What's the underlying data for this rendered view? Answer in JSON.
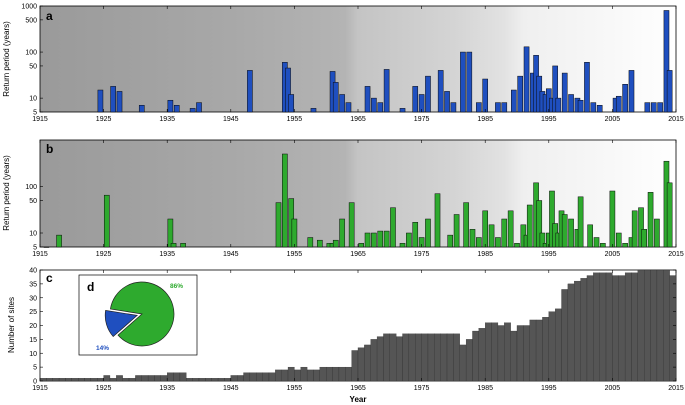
{
  "chart_data": [
    {
      "panel": "a",
      "type": "bar",
      "ylabel": "Return period (years)",
      "yscale": "log",
      "ylim": [
        5,
        1000
      ],
      "xlim": [
        1915,
        2015
      ],
      "yticks": [
        "5",
        "10",
        "50",
        "100",
        "500",
        "1000"
      ],
      "xticks": [
        "1915",
        "1925",
        "1935",
        "1945",
        "1955",
        "1965",
        "1975",
        "1985",
        "1995",
        "2005",
        "2015"
      ],
      "background": "grey-gradient",
      "bar_color": "#1f4fbf",
      "x": [
        1924.5,
        1926.5,
        1927.5,
        1931,
        1935.5,
        1936.5,
        1939,
        1940,
        1948,
        1953.5,
        1954,
        1954.5,
        1958,
        1961,
        1961.5,
        1962.5,
        1963.5,
        1966.5,
        1967.5,
        1968.5,
        1969.5,
        1972,
        1974,
        1975,
        1976,
        1978,
        1979,
        1980,
        1981.5,
        1982.5,
        1984,
        1985,
        1987,
        1988,
        1989.5,
        1990.5,
        1991.5,
        1992.5,
        1993,
        1993.5,
        1994,
        1994.5,
        1995,
        1995.5,
        1996,
        1996.5,
        1997.5,
        1998.5,
        1999.5,
        2000,
        2001,
        2002,
        2003,
        2005.5,
        2006,
        2007,
        2008,
        2010.5,
        2011.5,
        2012.5,
        2013.5,
        2014
      ],
      "values": [
        15,
        18,
        14,
        7,
        9,
        7,
        6,
        8,
        40,
        60,
        45,
        12,
        6,
        38,
        22,
        12,
        8,
        18,
        10,
        8,
        42,
        6,
        18,
        12,
        30,
        40,
        14,
        8,
        100,
        100,
        8,
        26,
        8,
        8,
        15,
        30,
        130,
        35,
        85,
        30,
        14,
        12,
        16,
        10,
        50,
        10,
        35,
        12,
        10,
        9,
        60,
        8,
        7,
        10,
        11,
        20,
        40,
        8,
        8,
        8,
        800,
        40
      ]
    },
    {
      "panel": "b",
      "type": "bar",
      "ylabel": "Return period (years)",
      "yscale": "log",
      "ylim": [
        5,
        1000
      ],
      "xlim": [
        1915,
        2015
      ],
      "yticks": [
        "5",
        "10",
        "50",
        "100"
      ],
      "xticks": [
        "1915",
        "1925",
        "1935",
        "1945",
        "1955",
        "1965",
        "1975",
        "1985",
        "1995",
        "2005",
        "2015"
      ],
      "background": "grey-gradient",
      "bar_color": "#2eaa2e",
      "x": [
        1916,
        1918,
        1925.5,
        1935.5,
        1936,
        1937.5,
        1952.5,
        1953.5,
        1954.5,
        1955,
        1957.5,
        1959,
        1960.5,
        1961,
        1961.5,
        1962.5,
        1964,
        1965.5,
        1966.5,
        1967.5,
        1968.5,
        1969.5,
        1970.5,
        1972,
        1973,
        1974,
        1975,
        1976,
        1977.5,
        1979.5,
        1980.5,
        1982,
        1983,
        1984,
        1985,
        1986,
        1987,
        1988,
        1989,
        1990,
        1991,
        1991.5,
        1992,
        1993,
        1993.5,
        1994,
        1994.5,
        1995,
        1995.5,
        1996,
        1996.5,
        1997,
        1997.5,
        1998.5,
        1999.5,
        2000,
        2001.5,
        2002.5,
        2003.5,
        2005,
        2006,
        2007,
        2008,
        2008.5,
        2009.5,
        2010,
        2011,
        2012,
        2013.5,
        2014
      ],
      "values": [
        5,
        9,
        65,
        20,
        6,
        6,
        45,
        500,
        55,
        20,
        8,
        7,
        6,
        6,
        7,
        20,
        45,
        6,
        10,
        10,
        11,
        11,
        35,
        6,
        10,
        17,
        8,
        20,
        70,
        9,
        25,
        45,
        12,
        8,
        30,
        15,
        8,
        20,
        30,
        6,
        15,
        9,
        40,
        120,
        50,
        10,
        6,
        10,
        80,
        16,
        10,
        30,
        25,
        20,
        12,
        60,
        15,
        8,
        6,
        80,
        10,
        6,
        8,
        30,
        35,
        12,
        75,
        20,
        350,
        120
      ]
    },
    {
      "panel": "c",
      "type": "bar",
      "xlabel": "Year",
      "ylabel": "Number of sites",
      "ylim": [
        0,
        40
      ],
      "xlim": [
        1915,
        2015
      ],
      "yticks": [
        "0",
        "5",
        "10",
        "15",
        "20",
        "25",
        "30",
        "35",
        "40"
      ],
      "xticks": [
        "1915",
        "1925",
        "1935",
        "1945",
        "1955",
        "1965",
        "1975",
        "1985",
        "1995",
        "2005",
        "2015"
      ],
      "bar_color": "#555555",
      "x_start": 1915,
      "values": [
        1,
        1,
        1,
        1,
        1,
        1,
        1,
        1,
        1,
        1,
        2,
        1,
        2,
        1,
        1,
        2,
        2,
        2,
        2,
        2,
        3,
        3,
        3,
        1,
        1,
        1,
        1,
        1,
        1,
        1,
        2,
        2,
        3,
        3,
        3,
        3,
        3,
        4,
        4,
        5,
        4,
        5,
        4,
        4,
        5,
        5,
        5,
        5,
        5,
        11,
        12,
        13,
        15,
        16,
        17,
        17,
        16,
        17,
        17,
        17,
        17,
        17,
        17,
        17,
        17,
        17,
        13,
        15,
        18,
        19,
        21,
        21,
        20,
        21,
        18,
        20,
        20,
        22,
        22,
        23,
        25,
        26,
        33,
        35,
        36,
        37,
        38,
        39,
        39,
        39,
        38,
        38,
        39,
        39,
        40,
        40,
        40,
        40,
        40,
        38,
        38,
        37,
        36
      ],
      "inset": {
        "label": "d",
        "type": "pie",
        "slices": [
          {
            "value": 86,
            "label": "86%",
            "color": "#2eaa2e"
          },
          {
            "value": 14,
            "label": "14%",
            "color": "#1f4fbf"
          }
        ]
      }
    }
  ]
}
